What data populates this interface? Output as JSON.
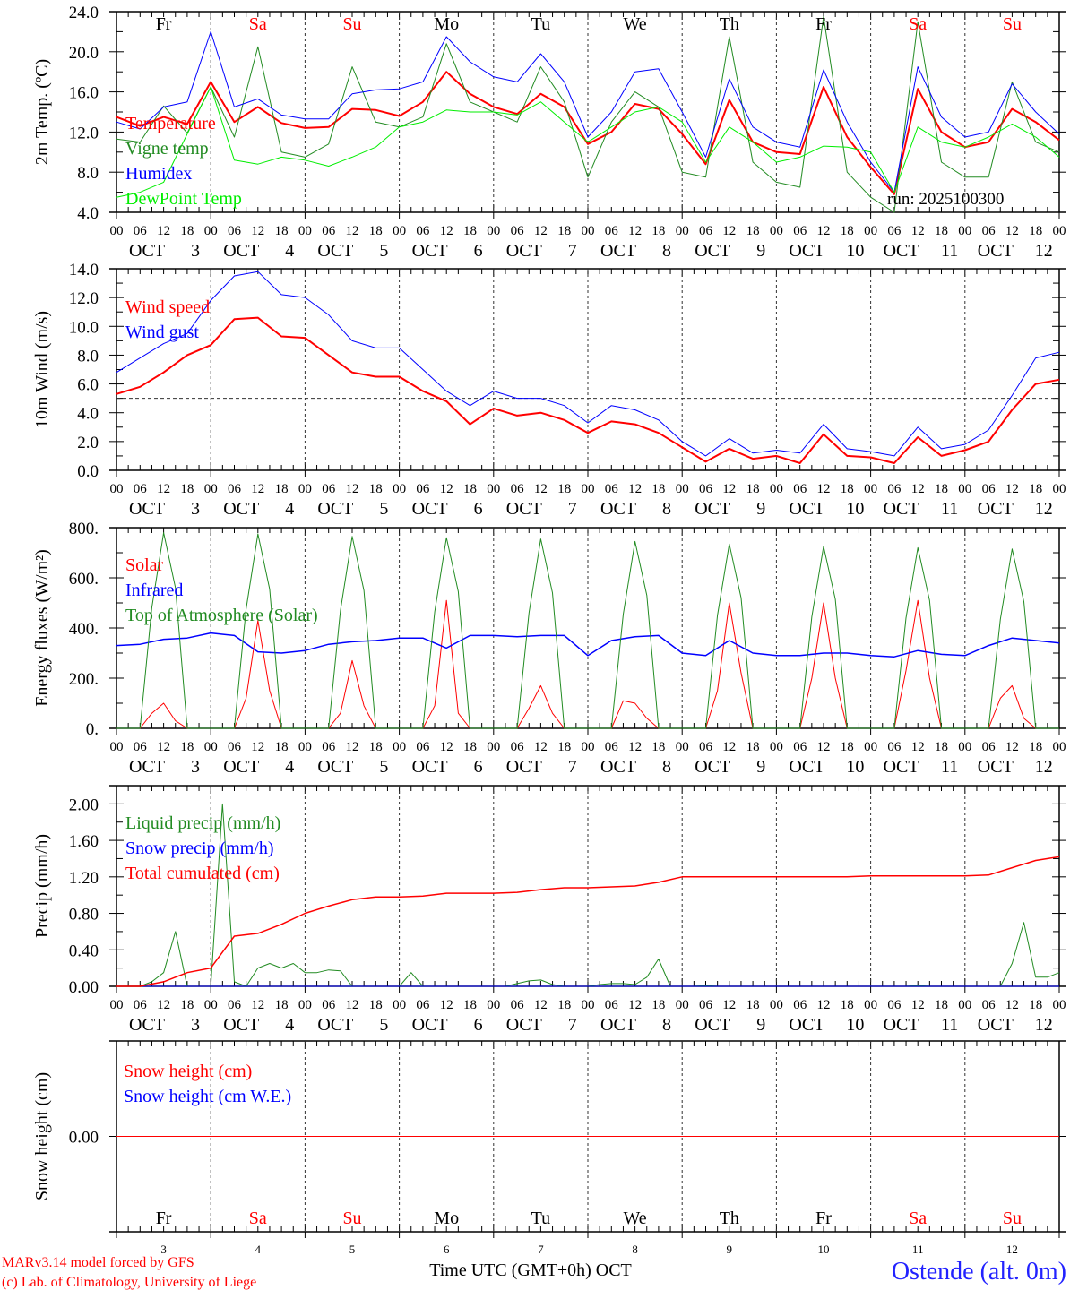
{
  "days": {
    "names": [
      "Fr",
      "Sa",
      "Su",
      "Mo",
      "Tu",
      "We",
      "Th",
      "Fr",
      "Sa",
      "Su"
    ],
    "weekend": [
      false,
      true,
      true,
      false,
      false,
      false,
      false,
      false,
      true,
      true
    ],
    "dates": [
      "3",
      "4",
      "5",
      "6",
      "7",
      "8",
      "9",
      "10",
      "11",
      "12"
    ],
    "month": "OCT",
    "hour_labels": [
      "00",
      "06",
      "12",
      "18"
    ]
  },
  "colors": {
    "weekday": "#000000",
    "weekend": "#ff0000"
  },
  "footer": {
    "model": "MARv3.14 model forced by GFS",
    "credit": "(c) Lab. of Climatology, University of Liege",
    "xlabel": "Time UTC (GMT+0h) OCT",
    "station": "Ostende (alt. 0m)"
  },
  "run_label": "run: 2025100300",
  "chart_data": [
    {
      "type": "line",
      "ylabel": "2m Temp. (ºC)",
      "ylim": [
        4,
        24
      ],
      "yticks": [
        4,
        8,
        12,
        16,
        20,
        24
      ],
      "ytick_labels": [
        "4.0",
        "8.0",
        "12.0",
        "16.0",
        "20.0",
        "24.0"
      ],
      "x_start_hours": 0,
      "series": [
        {
          "name": "Temperature",
          "color": "#ff0000",
          "width": 2,
          "step_hours": 6,
          "values": [
            13.5,
            12.6,
            13.5,
            12.8,
            17.0,
            13.0,
            14.5,
            12.9,
            12.4,
            12.5,
            14.3,
            14.2,
            13.6,
            15.0,
            18.0,
            15.8,
            14.5,
            13.8,
            15.8,
            14.5,
            10.8,
            12.0,
            14.8,
            14.3,
            11.8,
            8.8,
            15.2,
            11.0,
            10.0,
            9.8,
            16.5,
            11.5,
            8.5,
            5.8,
            16.3,
            12.0,
            10.5,
            11.0,
            14.3,
            13.0,
            11.2
          ]
        },
        {
          "name": "Vigne temp",
          "color": "#228b22",
          "width": 1,
          "step_hours": 6,
          "values": [
            11.3,
            11.0,
            14.6,
            11.9,
            16.5,
            11.5,
            20.5,
            10.0,
            9.5,
            10.8,
            18.5,
            13.0,
            12.5,
            13.5,
            20.8,
            15.0,
            14.0,
            13.0,
            18.5,
            15.0,
            7.5,
            13.0,
            16.0,
            14.5,
            8.0,
            7.5,
            21.5,
            9.0,
            7.0,
            6.5,
            23.5,
            8.0,
            5.5,
            4.0,
            23.0,
            9.0,
            7.5,
            7.5,
            17.0,
            11.0,
            10.0
          ]
        },
        {
          "name": "Humidex",
          "color": "#0000ff",
          "width": 1,
          "step_hours": 6,
          "values": [
            13.0,
            12.3,
            14.5,
            15.0,
            22.0,
            14.5,
            15.3,
            13.7,
            13.3,
            13.3,
            15.8,
            16.2,
            16.3,
            17.0,
            21.5,
            19.0,
            17.5,
            17.0,
            19.8,
            17.0,
            11.5,
            14.0,
            18.0,
            18.3,
            14.0,
            9.5,
            17.3,
            12.5,
            11.0,
            10.5,
            18.2,
            13.0,
            9.0,
            6.0,
            18.5,
            13.5,
            11.5,
            12.0,
            16.8,
            14.0,
            11.8
          ]
        },
        {
          "name": "DewPoint Temp",
          "color": "#00ee00",
          "width": 1,
          "step_hours": 6,
          "values": [
            5.5,
            6.0,
            7.0,
            11.8,
            16.5,
            9.2,
            8.8,
            9.5,
            9.2,
            8.6,
            9.5,
            10.5,
            12.5,
            13.0,
            14.2,
            14.0,
            14.0,
            13.7,
            15.0,
            13.0,
            11.0,
            12.5,
            14.0,
            14.5,
            13.0,
            9.0,
            12.5,
            11.0,
            9.0,
            9.5,
            10.6,
            10.5,
            10.0,
            6.0,
            12.5,
            11.0,
            10.5,
            11.5,
            12.8,
            11.5,
            9.5
          ]
        }
      ]
    },
    {
      "type": "line",
      "ylabel": "10m Wind (m/s)",
      "ylim": [
        0,
        14
      ],
      "yticks": [
        0,
        2,
        4,
        6,
        8,
        10,
        12,
        14
      ],
      "ytick_labels": [
        "0.0",
        "2.0",
        "4.0",
        "6.0",
        "8.0",
        "10.0",
        "12.0",
        "14.0"
      ],
      "reference_line": 5.0,
      "series": [
        {
          "name": "Wind speed",
          "color": "#ff0000",
          "width": 2,
          "step_hours": 6,
          "values": [
            5.3,
            5.8,
            6.8,
            8.0,
            8.7,
            10.5,
            10.6,
            9.3,
            9.2,
            8.0,
            6.8,
            6.5,
            6.5,
            5.5,
            4.8,
            3.2,
            4.3,
            3.8,
            4.0,
            3.5,
            2.6,
            3.4,
            3.2,
            2.6,
            1.6,
            0.6,
            1.5,
            0.8,
            1.0,
            0.5,
            2.5,
            1.0,
            0.9,
            0.5,
            2.3,
            1.0,
            1.4,
            2.0,
            4.2,
            6.0,
            6.3
          ]
        },
        {
          "name": "Wind gust",
          "color": "#0000ff",
          "width": 1,
          "step_hours": 6,
          "values": [
            6.8,
            7.8,
            8.8,
            9.5,
            11.8,
            13.5,
            13.8,
            12.2,
            12.0,
            10.8,
            9.0,
            8.5,
            8.5,
            7.0,
            5.5,
            4.5,
            5.5,
            5.0,
            5.0,
            4.5,
            3.3,
            4.5,
            4.2,
            3.5,
            2.0,
            1.0,
            2.2,
            1.2,
            1.4,
            1.2,
            3.2,
            1.5,
            1.3,
            1.0,
            3.0,
            1.5,
            1.8,
            2.8,
            5.2,
            7.8,
            8.2
          ]
        }
      ]
    },
    {
      "type": "line",
      "ylabel": "Energy fluxes (W/m²)",
      "ylim": [
        0,
        800
      ],
      "yticks": [
        0,
        200,
        400,
        600,
        800
      ],
      "ytick_labels": [
        "0.",
        "200.",
        "400.",
        "600.",
        "800."
      ],
      "series": [
        {
          "name": "Solar",
          "color": "#ff0000",
          "width": 1,
          "step_hours": 3,
          "values": [
            0,
            0,
            0,
            60,
            100,
            30,
            0,
            0,
            0,
            0,
            0,
            120,
            430,
            150,
            0,
            0,
            0,
            0,
            0,
            60,
            270,
            90,
            0,
            0,
            0,
            0,
            0,
            90,
            510,
            60,
            0,
            0,
            0,
            0,
            0,
            80,
            170,
            60,
            0,
            0,
            0,
            0,
            0,
            110,
            100,
            40,
            0,
            0,
            0,
            0,
            0,
            150,
            500,
            220,
            0,
            0,
            0,
            0,
            0,
            200,
            500,
            200,
            0,
            0,
            0,
            0,
            0,
            230,
            510,
            200,
            0,
            0,
            0,
            0,
            0,
            120,
            170,
            40,
            0,
            0,
            0
          ]
        },
        {
          "name": "Infrared",
          "color": "#0000ff",
          "width": 1.5,
          "step_hours": 6,
          "values": [
            330,
            335,
            355,
            360,
            380,
            370,
            305,
            300,
            310,
            335,
            345,
            350,
            360,
            360,
            320,
            370,
            370,
            365,
            370,
            370,
            290,
            350,
            365,
            370,
            300,
            290,
            350,
            300,
            290,
            290,
            300,
            300,
            290,
            285,
            310,
            295,
            290,
            330,
            360,
            350,
            340
          ]
        },
        {
          "name": "Top of Atmosphere (Solar)",
          "color": "#228b22",
          "width": 1,
          "step_hours": 3,
          "values": [
            0,
            0,
            0,
            480,
            780,
            560,
            0,
            0,
            0,
            0,
            0,
            475,
            775,
            555,
            0,
            0,
            0,
            0,
            0,
            470,
            765,
            550,
            0,
            0,
            0,
            0,
            0,
            465,
            760,
            545,
            0,
            0,
            0,
            0,
            0,
            460,
            755,
            540,
            0,
            0,
            0,
            0,
            0,
            455,
            745,
            530,
            0,
            0,
            0,
            0,
            0,
            450,
            735,
            520,
            0,
            0,
            0,
            0,
            0,
            445,
            725,
            515,
            0,
            0,
            0,
            0,
            0,
            440,
            720,
            510,
            0,
            0,
            0,
            0,
            0,
            435,
            715,
            505,
            0,
            0,
            0
          ]
        }
      ]
    },
    {
      "type": "line",
      "ylabel": "Precip (mm/h)",
      "ylim": [
        0,
        2.2
      ],
      "yticks": [
        0,
        0.4,
        0.8,
        1.2,
        1.6,
        2.0
      ],
      "ytick_labels": [
        "0.00",
        "0.40",
        "0.80",
        "1.20",
        "1.60",
        "2.00"
      ],
      "series": [
        {
          "name": "Liquid precip (mm/h)",
          "color": "#228b22",
          "width": 1,
          "step_hours": 3,
          "values": [
            0,
            0,
            0,
            0.05,
            0.15,
            0.6,
            0,
            0,
            0,
            2.0,
            0.05,
            0,
            0.2,
            0.25,
            0.2,
            0.25,
            0.15,
            0.15,
            0.18,
            0.17,
            0,
            0,
            0,
            0,
            0,
            0.15,
            0,
            0,
            0,
            0,
            0,
            0,
            0,
            0,
            0.03,
            0.06,
            0.07,
            0.02,
            0,
            0,
            0,
            0.02,
            0.03,
            0.03,
            0.02,
            0.1,
            0.3,
            0,
            0,
            0,
            0.01,
            0,
            0,
            0,
            0,
            0,
            0,
            0,
            0,
            0,
            0,
            0,
            0,
            0,
            0,
            0,
            0,
            0,
            0.01,
            0,
            0,
            0,
            0,
            0,
            0,
            0,
            0.25,
            0.7,
            0.1,
            0.1,
            0.15
          ]
        },
        {
          "name": "Snow precip (mm/h)",
          "color": "#0000ff",
          "width": 1,
          "step_hours": 240,
          "values": [
            0,
            0
          ]
        },
        {
          "name": "Total cumulated (cm)",
          "color": "#ff0000",
          "width": 1.5,
          "step_hours": 6,
          "values": [
            0,
            0,
            0.05,
            0.15,
            0.2,
            0.55,
            0.58,
            0.68,
            0.8,
            0.88,
            0.95,
            0.98,
            0.98,
            0.99,
            1.02,
            1.02,
            1.02,
            1.03,
            1.06,
            1.08,
            1.08,
            1.09,
            1.1,
            1.14,
            1.2,
            1.2,
            1.2,
            1.2,
            1.2,
            1.2,
            1.2,
            1.2,
            1.21,
            1.21,
            1.21,
            1.21,
            1.21,
            1.22,
            1.3,
            1.38,
            1.42
          ]
        }
      ]
    },
    {
      "type": "line",
      "ylabel": "Snow height (cm)",
      "ylim": [
        -1,
        1
      ],
      "yticks": [
        0
      ],
      "ytick_labels": [
        "0.00"
      ],
      "series": [
        {
          "name": "Snow height (cm)",
          "color": "#ff0000",
          "width": 1,
          "step_hours": 240,
          "values": [
            0,
            0
          ]
        },
        {
          "name": "Snow height (cm W.E.)",
          "color": "#0000ff",
          "width": 0,
          "step_hours": 240,
          "values": [
            0,
            0
          ]
        }
      ]
    }
  ]
}
